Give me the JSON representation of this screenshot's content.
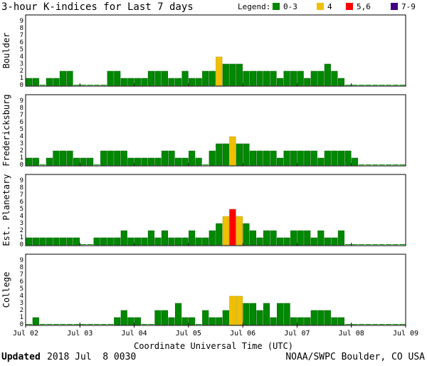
{
  "title": "3-hour K-indices for Last 7 days",
  "legend": {
    "label": "Legend:",
    "items": [
      {
        "label": "0-3",
        "color": "#008800"
      },
      {
        "label": "4",
        "color": "#f0c000"
      },
      {
        "label": "5,6",
        "color": "#ff0000"
      },
      {
        "label": "7-9",
        "color": "#400080"
      }
    ]
  },
  "x_axis": {
    "title": "Coordinate Universal Time (UTC)",
    "tick_labels": [
      "Jul 02",
      "Jul 03",
      "Jul 04",
      "Jul 05",
      "Jul 06",
      "Jul 07",
      "Jul 08",
      "Jul 09"
    ]
  },
  "footer": {
    "updated_label": "Updated",
    "updated_value": "2018 Jul  8 0030",
    "source": "NOAA/SWPC Boulder, CO USA"
  },
  "chart_data": [
    {
      "type": "bar",
      "title": "Boulder",
      "ylim": [
        0,
        9
      ],
      "yticks": [
        "0",
        "1",
        "2",
        "3",
        "4",
        "5",
        "6",
        "7",
        "8",
        "9"
      ],
      "values": [
        1,
        1,
        0,
        1,
        1,
        2,
        2,
        0,
        0,
        0,
        0,
        0,
        2,
        2,
        1,
        1,
        1,
        1,
        2,
        2,
        2,
        1,
        1,
        2,
        1,
        1,
        2,
        2,
        4,
        3,
        3,
        3,
        2,
        2,
        2,
        2,
        2,
        1,
        2,
        2,
        2,
        1,
        2,
        2,
        3,
        2,
        1,
        0,
        0,
        0,
        0,
        0,
        0,
        0,
        0,
        0
      ]
    },
    {
      "type": "bar",
      "title": "Fredericksburg",
      "ylim": [
        0,
        9
      ],
      "yticks": [
        "0",
        "1",
        "2",
        "3",
        "4",
        "5",
        "6",
        "7",
        "8",
        "9"
      ],
      "values": [
        1,
        1,
        0,
        1,
        2,
        2,
        2,
        1,
        1,
        1,
        0,
        2,
        2,
        2,
        2,
        1,
        1,
        1,
        1,
        1,
        2,
        2,
        1,
        1,
        2,
        1,
        0,
        2,
        3,
        3,
        4,
        3,
        3,
        2,
        2,
        2,
        2,
        1,
        2,
        2,
        2,
        2,
        2,
        1,
        2,
        2,
        2,
        2,
        1,
        0,
        0,
        0,
        0,
        0,
        0,
        0
      ]
    },
    {
      "type": "bar",
      "title": "Est. Planetary",
      "ylim": [
        0,
        9
      ],
      "yticks": [
        "0",
        "1",
        "2",
        "3",
        "4",
        "5",
        "6",
        "7",
        "8",
        "9"
      ],
      "values": [
        1,
        1,
        1,
        1,
        1,
        1,
        1,
        1,
        0,
        0,
        1,
        1,
        1,
        1,
        2,
        1,
        1,
        1,
        2,
        1,
        2,
        1,
        1,
        1,
        2,
        1,
        1,
        2,
        3,
        4,
        5,
        4,
        3,
        2,
        1,
        2,
        2,
        1,
        1,
        2,
        2,
        2,
        1,
        2,
        1,
        1,
        2,
        0,
        0,
        0,
        0,
        0,
        0,
        0,
        0,
        0
      ]
    },
    {
      "type": "bar",
      "title": "College",
      "ylim": [
        0,
        9
      ],
      "yticks": [
        "0",
        "1",
        "2",
        "3",
        "4",
        "5",
        "6",
        "7",
        "8",
        "9"
      ],
      "values": [
        0,
        1,
        0,
        0,
        0,
        0,
        0,
        0,
        0,
        0,
        0,
        0,
        0,
        1,
        2,
        1,
        1,
        0,
        0,
        2,
        2,
        1,
        3,
        1,
        1,
        0,
        2,
        1,
        1,
        2,
        4,
        4,
        3,
        3,
        2,
        3,
        1,
        3,
        3,
        1,
        1,
        1,
        2,
        2,
        2,
        1,
        1,
        0,
        0,
        0,
        0,
        0,
        0,
        0,
        0,
        0
      ]
    }
  ]
}
